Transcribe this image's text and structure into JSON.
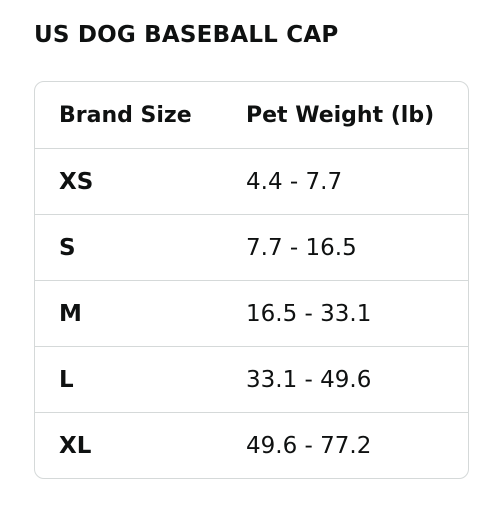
{
  "title": "US DOG BASEBALL CAP",
  "table": {
    "headers": [
      "Brand Size",
      "Pet Weight (lb)"
    ],
    "rows": [
      {
        "size": "XS",
        "weight": "4.4 - 7.7"
      },
      {
        "size": "S",
        "weight": "7.7 - 16.5"
      },
      {
        "size": "M",
        "weight": "16.5 - 33.1"
      },
      {
        "size": "L",
        "weight": "33.1 - 49.6"
      },
      {
        "size": "XL",
        "weight": "49.6 - 77.2"
      }
    ]
  }
}
